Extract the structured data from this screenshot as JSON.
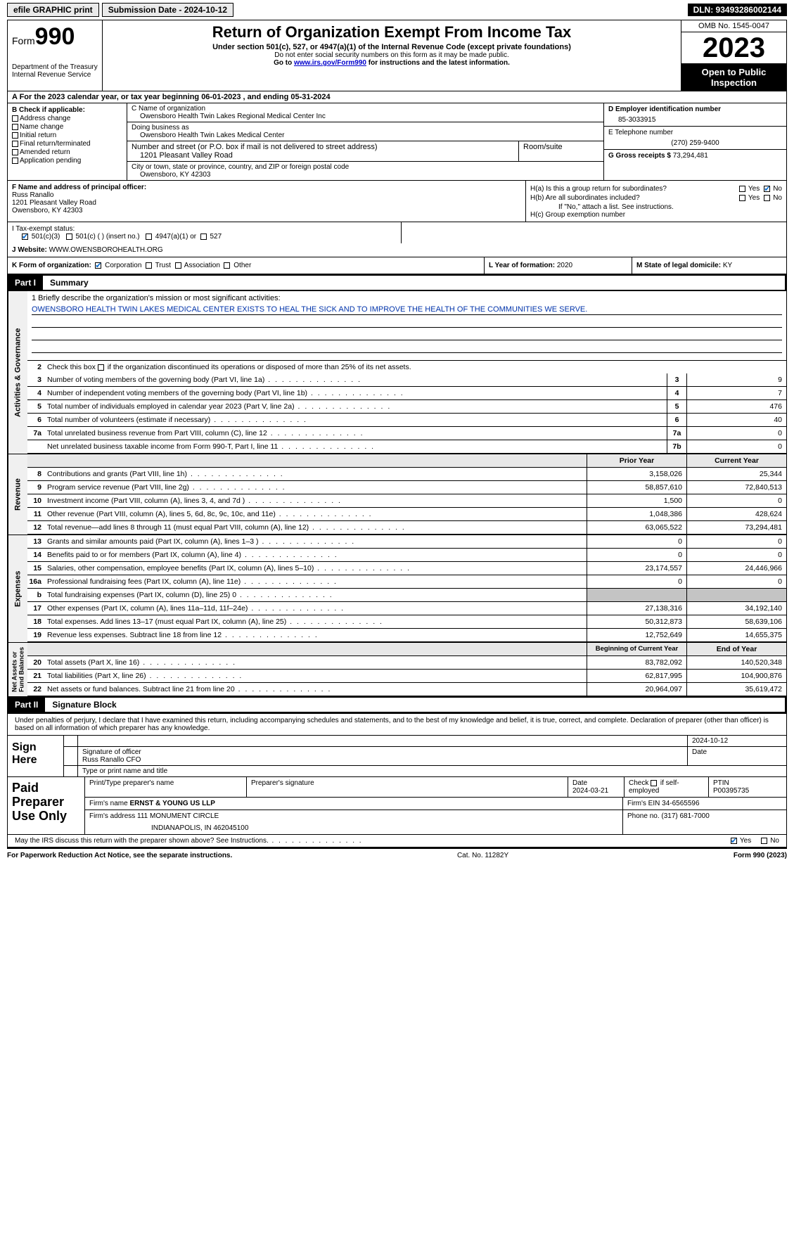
{
  "topbar": {
    "efile_label": "efile GRAPHIC print",
    "submission_label": "Submission Date - 2024-10-12",
    "dln_label": "DLN: 93493286002144"
  },
  "header": {
    "form_word": "Form",
    "form_number": "990",
    "title": "Return of Organization Exempt From Income Tax",
    "subtitle": "Under section 501(c), 527, or 4947(a)(1) of the Internal Revenue Code (except private foundations)",
    "note1": "Do not enter social security numbers on this form as it may be made public.",
    "note2_pre": "Go to ",
    "note2_link": "www.irs.gov/Form990",
    "note2_post": " for instructions and the latest information.",
    "dept": "Department of the Treasury\nInternal Revenue Service",
    "omb": "OMB No. 1545-0047",
    "year": "2023",
    "open": "Open to Public Inspection"
  },
  "row_a": "A  For the 2023 calendar year, or tax year beginning 06-01-2023    , and ending 05-31-2024",
  "box_b": {
    "header": "B Check if applicable:",
    "opts": [
      "Address change",
      "Name change",
      "Initial return",
      "Final return/terminated",
      "Amended return",
      "Application pending"
    ]
  },
  "box_c": {
    "name_label": "C Name of organization",
    "name": "Owensboro Health Twin Lakes Regional Medical Center Inc",
    "dba_label": "Doing business as",
    "dba": "Owensboro Health Twin Lakes Medical Center",
    "street_label": "Number and street (or P.O. box if mail is not delivered to street address)",
    "street": "1201 Pleasant Valley Road",
    "room_label": "Room/suite",
    "city_label": "City or town, state or province, country, and ZIP or foreign postal code",
    "city": "Owensboro, KY  42303"
  },
  "box_d": {
    "ein_label": "D Employer identification number",
    "ein": "85-3033915",
    "phone_label": "E Telephone number",
    "phone": "(270) 259-9400",
    "gross_label": "G Gross receipts $ ",
    "gross": "73,294,481"
  },
  "box_f": {
    "label": "F  Name and address of principal officer:",
    "name": "Russ Ranallo",
    "addr1": "1201 Pleasant Valley Road",
    "addr2": "Owensboro, KY  42303"
  },
  "box_h": {
    "ha_label": "H(a)  Is this a group return for subordinates?",
    "hb_label": "H(b)  Are all subordinates included?",
    "hb_note": "If \"No,\" attach a list. See instructions.",
    "hc_label": "H(c)  Group exemption number  "
  },
  "row_i": {
    "label": "I   Tax-exempt status:",
    "o1": "501(c)(3)",
    "o2": "501(c) (  ) (insert no.)",
    "o3": "4947(a)(1) or",
    "o4": "527"
  },
  "row_j": {
    "label": "J   Website: ",
    "value": "WWW.OWENSBOROHEALTH.ORG"
  },
  "row_k": {
    "label": "K Form of organization:",
    "opts": [
      "Corporation",
      "Trust",
      "Association",
      "Other"
    ],
    "l_label": "L Year of formation: ",
    "l_val": "2020",
    "m_label": "M State of legal domicile: ",
    "m_val": "KY"
  },
  "part1": {
    "num": "Part I",
    "title": "Summary"
  },
  "mission": {
    "label": "1   Briefly describe the organization's mission or most significant activities:",
    "text": "OWENSBORO HEALTH TWIN LAKES MEDICAL CENTER EXISTS TO HEAL THE SICK AND TO IMPROVE THE HEALTH OF THE COMMUNITIES WE SERVE."
  },
  "line2": "Check this box        if the organization discontinued its operations or disposed of more than 25% of its net assets.",
  "gov_lines": [
    {
      "n": "3",
      "d": "Number of voting members of the governing body (Part VI, line 1a)",
      "b": "3",
      "v": "9"
    },
    {
      "n": "4",
      "d": "Number of independent voting members of the governing body (Part VI, line 1b)",
      "b": "4",
      "v": "7"
    },
    {
      "n": "5",
      "d": "Total number of individuals employed in calendar year 2023 (Part V, line 2a)",
      "b": "5",
      "v": "476"
    },
    {
      "n": "6",
      "d": "Total number of volunteers (estimate if necessary)",
      "b": "6",
      "v": "40"
    },
    {
      "n": "7a",
      "d": "Total unrelated business revenue from Part VIII, column (C), line 12",
      "b": "7a",
      "v": "0"
    },
    {
      "n": "",
      "d": "Net unrelated business taxable income from Form 990-T, Part I, line 11",
      "b": "7b",
      "v": "0"
    }
  ],
  "col_headers": {
    "prior": "Prior Year",
    "curr": "Current Year"
  },
  "rev_lines": [
    {
      "n": "8",
      "d": "Contributions and grants (Part VIII, line 1h)",
      "p": "3,158,026",
      "c": "25,344"
    },
    {
      "n": "9",
      "d": "Program service revenue (Part VIII, line 2g)",
      "p": "58,857,610",
      "c": "72,840,513"
    },
    {
      "n": "10",
      "d": "Investment income (Part VIII, column (A), lines 3, 4, and 7d )",
      "p": "1,500",
      "c": "0"
    },
    {
      "n": "11",
      "d": "Other revenue (Part VIII, column (A), lines 5, 6d, 8c, 9c, 10c, and 11e)",
      "p": "1,048,386",
      "c": "428,624"
    },
    {
      "n": "12",
      "d": "Total revenue—add lines 8 through 11 (must equal Part VIII, column (A), line 12)",
      "p": "63,065,522",
      "c": "73,294,481"
    }
  ],
  "exp_lines": [
    {
      "n": "13",
      "d": "Grants and similar amounts paid (Part IX, column (A), lines 1–3 )",
      "p": "0",
      "c": "0"
    },
    {
      "n": "14",
      "d": "Benefits paid to or for members (Part IX, column (A), line 4)",
      "p": "0",
      "c": "0"
    },
    {
      "n": "15",
      "d": "Salaries, other compensation, employee benefits (Part IX, column (A), lines 5–10)",
      "p": "23,174,557",
      "c": "24,446,966"
    },
    {
      "n": "16a",
      "d": "Professional fundraising fees (Part IX, column (A), line 11e)",
      "p": "0",
      "c": "0"
    },
    {
      "n": "b",
      "d": "Total fundraising expenses (Part IX, column (D), line 25) 0",
      "p": "grey",
      "c": "grey"
    },
    {
      "n": "17",
      "d": "Other expenses (Part IX, column (A), lines 11a–11d, 11f–24e)",
      "p": "27,138,316",
      "c": "34,192,140"
    },
    {
      "n": "18",
      "d": "Total expenses. Add lines 13–17 (must equal Part IX, column (A), line 25)",
      "p": "50,312,873",
      "c": "58,639,106"
    },
    {
      "n": "19",
      "d": "Revenue less expenses. Subtract line 18 from line 12",
      "p": "12,752,649",
      "c": "14,655,375"
    }
  ],
  "na_headers": {
    "prior": "Beginning of Current Year",
    "curr": "End of Year"
  },
  "na_lines": [
    {
      "n": "20",
      "d": "Total assets (Part X, line 16)",
      "p": "83,782,092",
      "c": "140,520,348"
    },
    {
      "n": "21",
      "d": "Total liabilities (Part X, line 26)",
      "p": "62,817,995",
      "c": "104,900,876"
    },
    {
      "n": "22",
      "d": "Net assets or fund balances. Subtract line 21 from line 20",
      "p": "20,964,097",
      "c": "35,619,472"
    }
  ],
  "vtabs": {
    "gov": "Activities & Governance",
    "rev": "Revenue",
    "exp": "Expenses",
    "na": "Net Assets or\nFund Balances"
  },
  "part2": {
    "num": "Part II",
    "title": "Signature Block"
  },
  "sig_declaration": "Under penalties of perjury, I declare that I have examined this return, including accompanying schedules and statements, and to the best of my knowledge and belief, it is true, correct, and complete. Declaration of preparer (other than officer) is based on all information of which preparer has any knowledge.",
  "sign": {
    "label": "Sign Here",
    "row_date": "2024-10-12",
    "sig_label": "Signature of officer",
    "name": "Russ Ranallo  CFO",
    "name_label": "Type or print name and title",
    "date_label": "Date"
  },
  "paid": {
    "label": "Paid Preparer Use Only",
    "h1": "Print/Type preparer's name",
    "h2": "Preparer's signature",
    "h3": "Date",
    "h3v": "2024-03-21",
    "h4": "Check         if self-employed",
    "h5": "PTIN",
    "h5v": "P00395735",
    "firm_label": "Firm's name      ",
    "firm": "ERNST & YOUNG US LLP",
    "ein_label": "Firm's EIN   ",
    "ein": "34-6565596",
    "addr_label": "Firm's address ",
    "addr1": "111 MONUMENT CIRCLE",
    "addr2": "INDIANAPOLIS, IN  462045100",
    "phone_label": "Phone no. ",
    "phone": "(317) 681-7000"
  },
  "discuss": "May the IRS discuss this return with the preparer shown above? See Instructions.",
  "footer": {
    "l": "For Paperwork Reduction Act Notice, see the separate instructions.",
    "m": "Cat. No. 11282Y",
    "r": "Form 990 (2023)"
  }
}
